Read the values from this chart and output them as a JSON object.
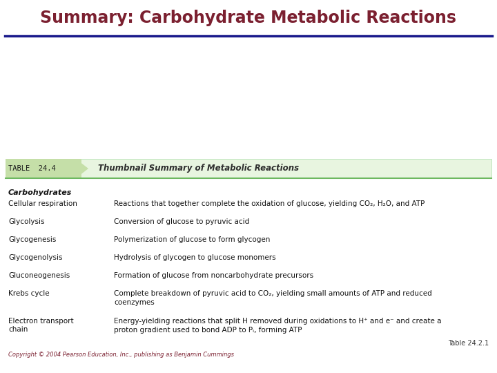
{
  "title": "Summary: Carbohydrate Metabolic Reactions",
  "title_color": "#7B2030",
  "header_line_color": "#1A1A8C",
  "table_label": "TABLE  24.4",
  "table_header": "Thumbnail Summary of Metabolic Reactions",
  "table_header_color": "#2E2E2E",
  "table_bg_light": "#E8F5E0",
  "table_bg_dark": "#C5DFA8",
  "section_title": "Carbohydrates",
  "rows": [
    {
      "term": "Cellular respiration",
      "definition": "Reactions that together complete the oxidation of glucose, yielding CO₂, H₂O, and ATP"
    },
    {
      "term": "Glycolysis",
      "definition": "Conversion of glucose to pyruvic acid"
    },
    {
      "term": "Glycogenesis",
      "definition": "Polymerization of glucose to form glycogen"
    },
    {
      "term": "Glycogenolysis",
      "definition": "Hydrolysis of glycogen to glucose monomers"
    },
    {
      "term": "Gluconeogenesis",
      "definition": "Formation of glucose from noncarbohydrate precursors"
    },
    {
      "term": "Krebs cycle",
      "definition": "Complete breakdown of pyruvic acid to CO₂, yielding small amounts of ATP and reduced\ncoenzymes"
    },
    {
      "term": "Electron transport\nchain",
      "definition": "Energy-yielding reactions that split H removed during oxidations to H⁺ and e⁻ and create a\nproton gradient used to bond ADP to Pᵢ, forming ATP"
    }
  ],
  "footer_left": "Copyright © 2004 Pearson Education, Inc., publishing as Benjamin Cummings",
  "footer_right": "Table 24.2.1",
  "footer_color": "#7B2030",
  "bg_color": "#FFFFFF",
  "figw": 7.2,
  "figh": 5.4,
  "dpi": 100
}
